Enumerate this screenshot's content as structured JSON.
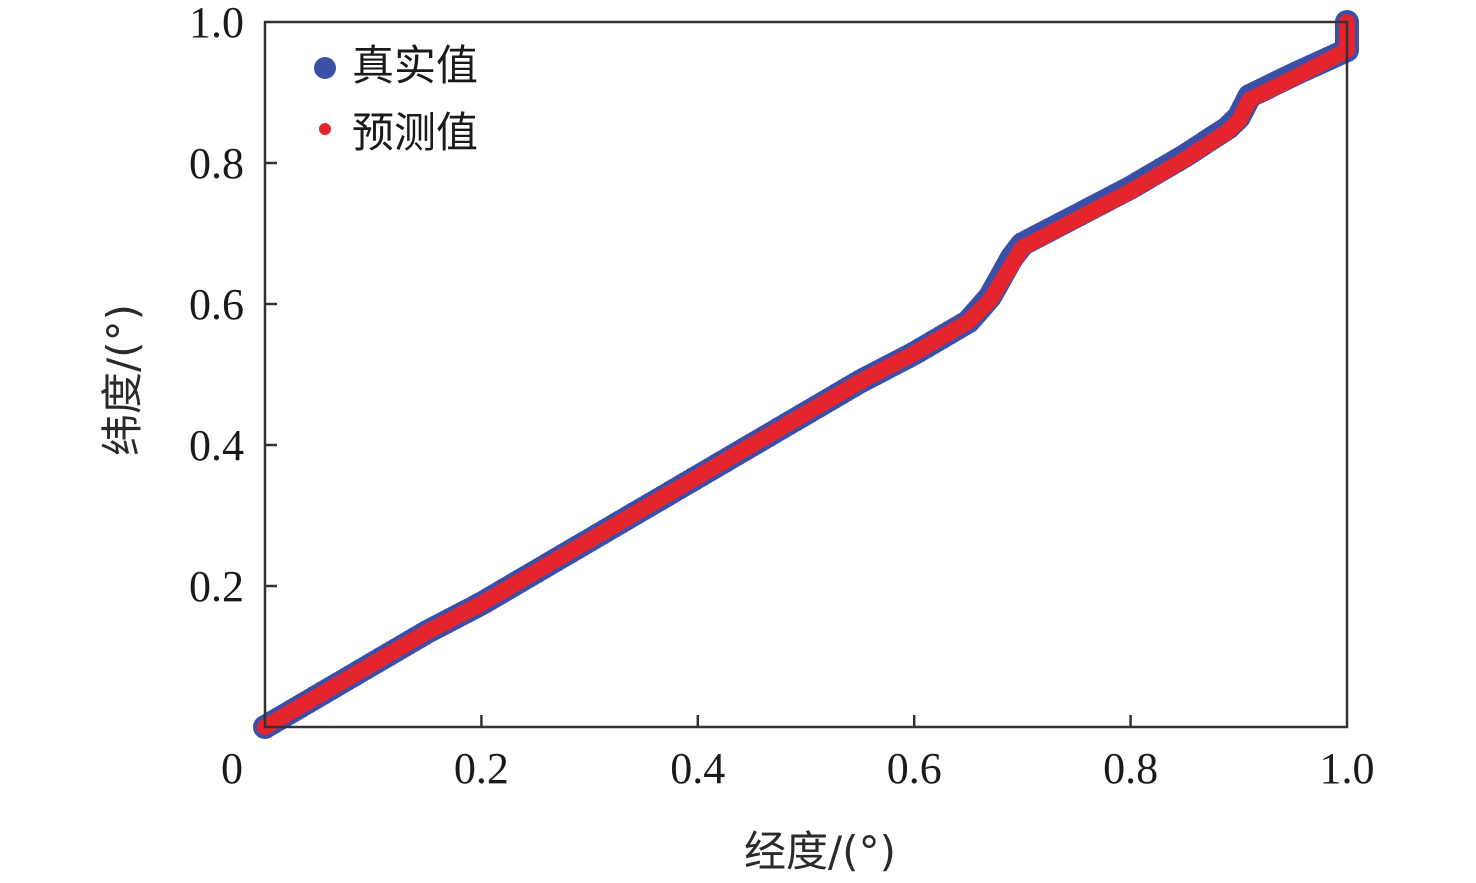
{
  "chart_data": {
    "type": "scatter",
    "xlabel": "经度/(°)",
    "ylabel": "纬度/(°)",
    "xlim": [
      0,
      1.0
    ],
    "ylim": [
      0,
      1.0
    ],
    "x_ticks": [
      {
        "value": 0,
        "label": "0"
      },
      {
        "value": 0.2,
        "label": "0.2"
      },
      {
        "value": 0.4,
        "label": "0.4"
      },
      {
        "value": 0.6,
        "label": "0.6"
      },
      {
        "value": 0.8,
        "label": "0.8"
      },
      {
        "value": 1.0,
        "label": "1.0"
      }
    ],
    "y_ticks": [
      {
        "value": 0.2,
        "label": "0.2"
      },
      {
        "value": 0.4,
        "label": "0.4"
      },
      {
        "value": 0.6,
        "label": "0.6"
      },
      {
        "value": 0.8,
        "label": "0.8"
      },
      {
        "value": 1.0,
        "label": "1.0"
      }
    ],
    "grid": false,
    "legend_position": "top-left",
    "series": [
      {
        "name": "真实值",
        "color": "#3a50a8",
        "marker": "large-dot",
        "x": [
          0.0,
          0.05,
          0.1,
          0.15,
          0.2,
          0.25,
          0.3,
          0.35,
          0.4,
          0.45,
          0.5,
          0.55,
          0.6,
          0.65,
          0.67,
          0.69,
          0.7,
          0.75,
          0.8,
          0.85,
          0.89,
          0.9,
          0.91,
          0.95,
          1.0,
          1.0
        ],
        "y": [
          0.0,
          0.045,
          0.09,
          0.135,
          0.175,
          0.22,
          0.265,
          0.31,
          0.355,
          0.4,
          0.445,
          0.49,
          0.53,
          0.575,
          0.61,
          0.665,
          0.685,
          0.725,
          0.765,
          0.81,
          0.85,
          0.865,
          0.895,
          0.925,
          0.96,
          1.0
        ]
      },
      {
        "name": "预测值",
        "color": "#e5252d",
        "marker": "small-dot",
        "x": [
          0.0,
          0.05,
          0.1,
          0.15,
          0.2,
          0.25,
          0.3,
          0.35,
          0.4,
          0.45,
          0.5,
          0.55,
          0.6,
          0.65,
          0.67,
          0.69,
          0.7,
          0.75,
          0.8,
          0.85,
          0.89,
          0.9,
          0.91,
          0.95,
          1.0,
          1.0
        ],
        "y": [
          0.0,
          0.045,
          0.09,
          0.135,
          0.175,
          0.22,
          0.265,
          0.31,
          0.355,
          0.4,
          0.445,
          0.49,
          0.53,
          0.575,
          0.605,
          0.655,
          0.68,
          0.72,
          0.76,
          0.805,
          0.845,
          0.86,
          0.89,
          0.92,
          0.96,
          1.0
        ]
      }
    ]
  }
}
